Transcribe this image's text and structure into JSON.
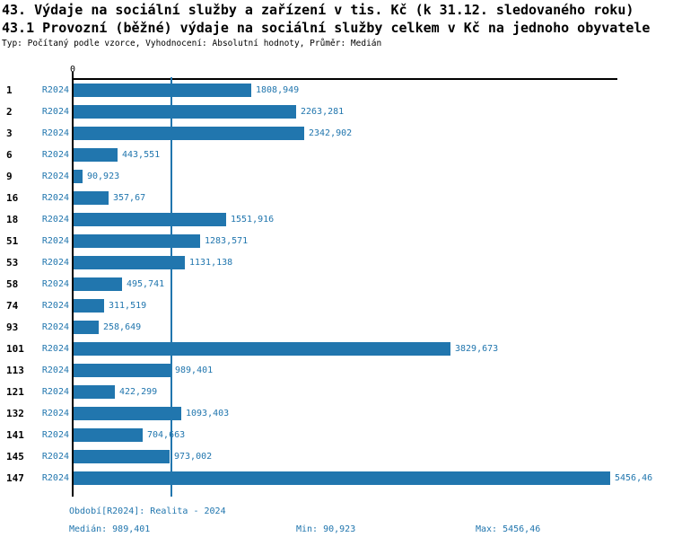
{
  "header": {
    "title_line1": "43. Výdaje na sociální služby a zařízení v tis. Kč (k 31.12. sledovaného roku)",
    "title_line2": "43.1 Provozní (běžné) výdaje na sociální služby celkem v Kč na jednoho obyvatele",
    "subtitle": "Typ: Počítaný podle vzorce, Vyhodnocení: Absolutní hodnoty, Průměr: Medián"
  },
  "colors": {
    "bar_blue": "#2176ae",
    "text_blue": "#2176ae",
    "axis_black": "#000000"
  },
  "chart_data": {
    "type": "bar",
    "orientation": "horizontal",
    "title": "43.1 Provozní (běžné) výdaje na sociální služby celkem v Kč na jednoho obyvatele",
    "zero_label": "0",
    "series_label": "R2024",
    "categories": [
      "1",
      "2",
      "3",
      "6",
      "9",
      "16",
      "18",
      "51",
      "53",
      "58",
      "74",
      "93",
      "101",
      "113",
      "121",
      "132",
      "141",
      "145",
      "147"
    ],
    "values": [
      1808.949,
      2263.281,
      2342.902,
      443.551,
      90.923,
      357.67,
      1551.916,
      1283.571,
      1131.138,
      495.741,
      311.519,
      258.649,
      3829.673,
      989.401,
      422.299,
      1093.403,
      704.663,
      973.002,
      5456.46
    ],
    "value_labels": [
      "1808,949",
      "2263,281",
      "2342,902",
      "443,551",
      "90,923",
      "357,67",
      "1551,916",
      "1283,571",
      "1131,138",
      "495,741",
      "311,519",
      "258,649",
      "3829,673",
      "989,401",
      "422,299",
      "1093,403",
      "704,663",
      "973,002",
      "5456,46"
    ],
    "xlim": [
      0,
      5456.46
    ],
    "median_value": 989.401,
    "median_line": true,
    "grid": false,
    "legend_position": "none"
  },
  "footer": {
    "period": "Období[R2024]: Realita - 2024",
    "median": "Medián: 989,401",
    "min": "Min: 90,923",
    "max": "Max: 5456,46"
  }
}
